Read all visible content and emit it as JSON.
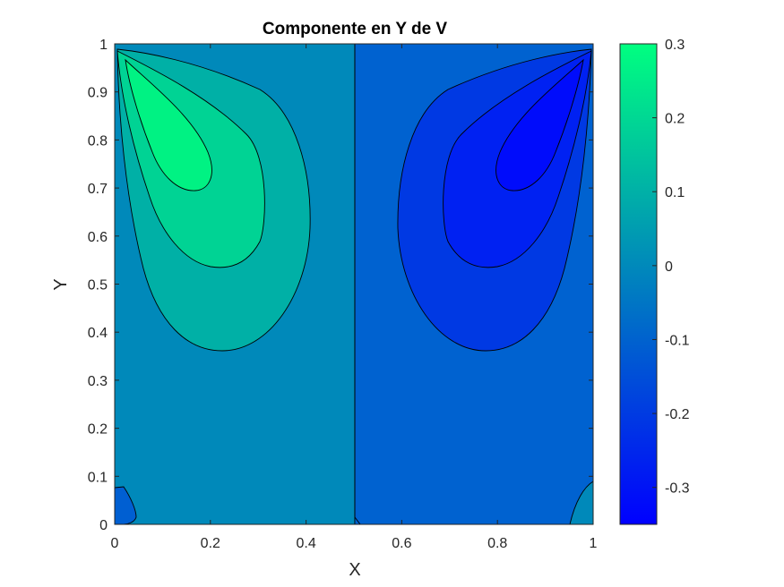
{
  "chart_data": {
    "type": "contour",
    "title": "Componente en Y de V",
    "xlabel": "X",
    "ylabel": "Y",
    "xlim": [
      0,
      1
    ],
    "ylim": [
      0,
      1
    ],
    "x_ticks": [
      "0",
      "0.2",
      "0.4",
      "0.6",
      "0.8",
      "1"
    ],
    "y_ticks": [
      "0",
      "0.1",
      "0.2",
      "0.3",
      "0.4",
      "0.5",
      "0.6",
      "0.7",
      "0.8",
      "0.9",
      "1"
    ],
    "colorbar": {
      "range": [
        -0.35,
        0.3
      ],
      "ticks": [
        "0.3",
        "0.2",
        "0.1",
        "0",
        "-0.1",
        "-0.2",
        "-0.3"
      ],
      "colormap": "winter",
      "color_low": "#0000ff",
      "color_high": "#00ff80"
    },
    "contour_levels": [
      -0.3,
      -0.2,
      -0.1,
      0,
      0.1,
      0.2
    ],
    "features": [
      {
        "kind": "maximum",
        "x": 0.13,
        "y": 0.8,
        "value": 0.27
      },
      {
        "kind": "minimum",
        "x": 0.87,
        "y": 0.78,
        "value": -0.3
      },
      {
        "kind": "zero-line",
        "x": 0.5
      }
    ]
  }
}
